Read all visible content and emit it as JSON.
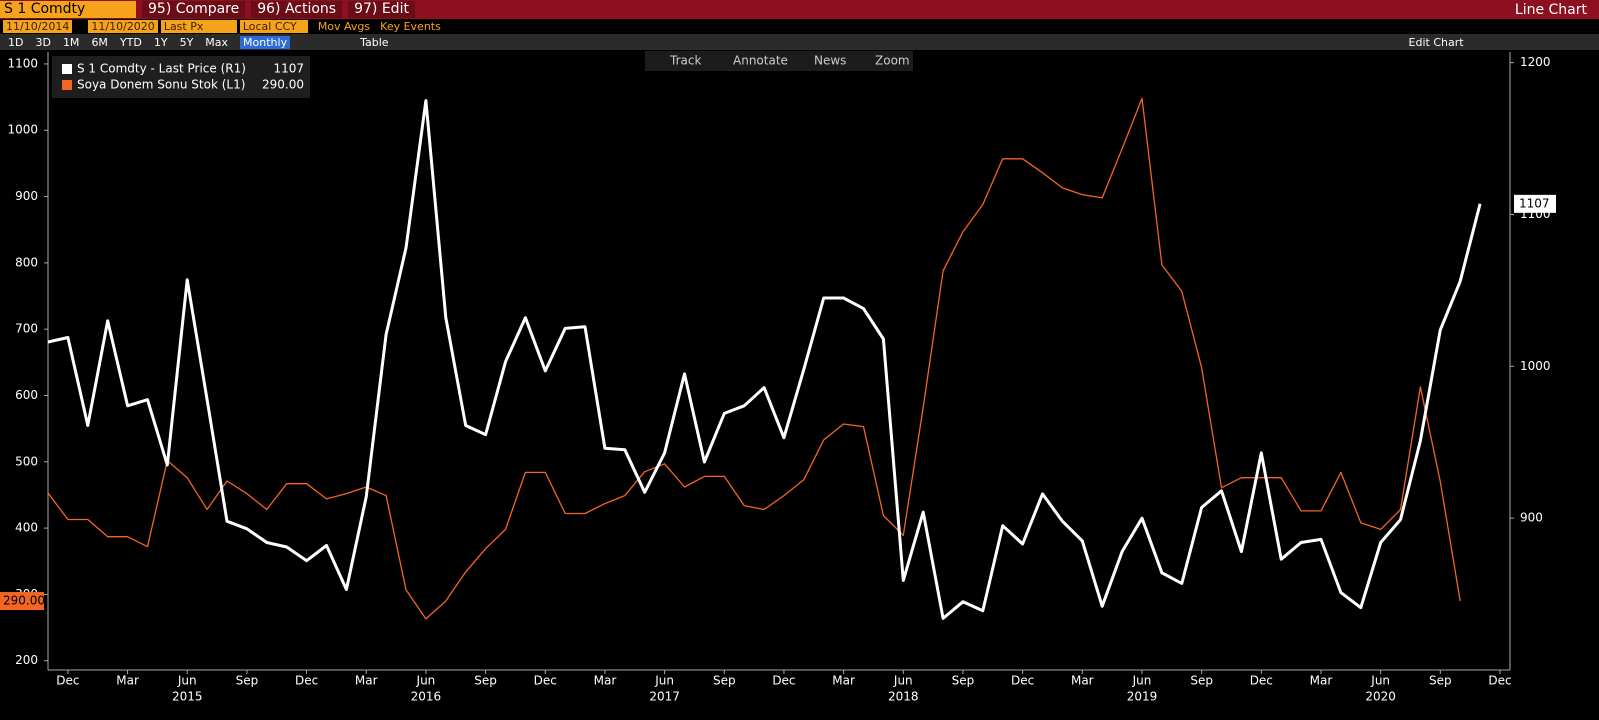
{
  "toolbar": {
    "ticker": "S 1 Comdty",
    "compare": "95) Compare",
    "actions": "96) Actions",
    "edit": "97) Edit",
    "view": "Line Chart",
    "start_date": "11/10/2014",
    "end_date": "11/10/2020",
    "field": "Last Px",
    "currency": "Local CCY",
    "mov_avgs": "Mov Avgs",
    "key_events": "Key Events",
    "periods": [
      "1D",
      "3D",
      "1M",
      "6M",
      "YTD",
      "1Y",
      "5Y",
      "Max"
    ],
    "frequency": "Monthly",
    "table": "Table",
    "edit_chart": "Edit Chart",
    "tools": [
      "Track",
      "Annotate",
      "News",
      "Zoom"
    ]
  },
  "chart_data": {
    "type": "line",
    "x": [
      "2014-11",
      "2014-12",
      "2015-01",
      "2015-02",
      "2015-03",
      "2015-04",
      "2015-05",
      "2015-06",
      "2015-07",
      "2015-08",
      "2015-09",
      "2015-10",
      "2015-11",
      "2015-12",
      "2016-01",
      "2016-02",
      "2016-03",
      "2016-04",
      "2016-05",
      "2016-06",
      "2016-07",
      "2016-08",
      "2016-09",
      "2016-10",
      "2016-11",
      "2016-12",
      "2017-01",
      "2017-02",
      "2017-03",
      "2017-04",
      "2017-05",
      "2017-06",
      "2017-07",
      "2017-08",
      "2017-09",
      "2017-10",
      "2017-11",
      "2017-12",
      "2018-01",
      "2018-02",
      "2018-03",
      "2018-04",
      "2018-05",
      "2018-06",
      "2018-07",
      "2018-08",
      "2018-09",
      "2018-10",
      "2018-11",
      "2018-12",
      "2019-01",
      "2019-02",
      "2019-03",
      "2019-04",
      "2019-05",
      "2019-06",
      "2019-07",
      "2019-08",
      "2019-09",
      "2019-10",
      "2019-11",
      "2019-12",
      "2020-01",
      "2020-02",
      "2020-03",
      "2020-04",
      "2020-05",
      "2020-06",
      "2020-07",
      "2020-08",
      "2020-09",
      "2020-10",
      "2020-11"
    ],
    "series": [
      {
        "name": "S 1 Comdty - Last Price (R1)",
        "color": "#ffffff",
        "axis": "y2",
        "last_label": "1107",
        "values": [
          1016,
          1019,
          961,
          1030,
          974,
          978,
          935,
          1057,
          978,
          898,
          893,
          884,
          881,
          872,
          882,
          853,
          914,
          1021,
          1078,
          1175,
          1032,
          961,
          955,
          1003,
          1032,
          997,
          1025,
          1026,
          946,
          945,
          917,
          943,
          995,
          937,
          969,
          974,
          986,
          953,
          998,
          1045,
          1045,
          1038,
          1018,
          859,
          904,
          834,
          845,
          839,
          895,
          883,
          916,
          898,
          885,
          842,
          878,
          900,
          864,
          857,
          907,
          918,
          878,
          943,
          873,
          884,
          886,
          851,
          841,
          884,
          899,
          951,
          1024,
          1056,
          1107
        ]
      },
      {
        "name": "Soya Donem Sonu Stok (L1)",
        "color": "#f26522",
        "axis": "y",
        "last_label": "290.00",
        "values": [
          453,
          413,
          413,
          387,
          387,
          372,
          502,
          476,
          428,
          471,
          452,
          428,
          467,
          467,
          444,
          452,
          462,
          449,
          307,
          263,
          290,
          334,
          369,
          398,
          484,
          484,
          422,
          422,
          437,
          449,
          485,
          497,
          462,
          478,
          478,
          434,
          428,
          449,
          473,
          533,
          557,
          553,
          419,
          389,
          582,
          788,
          847,
          888,
          957,
          957,
          936,
          913,
          903,
          898,
          972,
          1048,
          797,
          757,
          642,
          461,
          476,
          476,
          476,
          426,
          426,
          484,
          408,
          398,
          428,
          613,
          470,
          290,
          null
        ]
      }
    ],
    "xlim": [
      "2014-11",
      "2020-12"
    ],
    "xticks": [
      {
        "value": "2014-12",
        "label": "Dec"
      },
      {
        "value": "2015-03",
        "label": "Mar"
      },
      {
        "value": "2015-06",
        "label": "Jun"
      },
      {
        "value": "2015-09",
        "label": "Sep"
      },
      {
        "value": "2015-12",
        "label": "Dec"
      },
      {
        "value": "2016-03",
        "label": "Mar"
      },
      {
        "value": "2016-06",
        "label": "Jun"
      },
      {
        "value": "2016-09",
        "label": "Sep"
      },
      {
        "value": "2016-12",
        "label": "Dec"
      },
      {
        "value": "2017-03",
        "label": "Mar"
      },
      {
        "value": "2017-06",
        "label": "Jun"
      },
      {
        "value": "2017-09",
        "label": "Sep"
      },
      {
        "value": "2017-12",
        "label": "Dec"
      },
      {
        "value": "2018-03",
        "label": "Mar"
      },
      {
        "value": "2018-06",
        "label": "Jun"
      },
      {
        "value": "2018-09",
        "label": "Sep"
      },
      {
        "value": "2018-12",
        "label": "Dec"
      },
      {
        "value": "2019-03",
        "label": "Mar"
      },
      {
        "value": "2019-06",
        "label": "Jun"
      },
      {
        "value": "2019-09",
        "label": "Sep"
      },
      {
        "value": "2019-12",
        "label": "Dec"
      },
      {
        "value": "2020-03",
        "label": "Mar"
      },
      {
        "value": "2020-06",
        "label": "Jun"
      },
      {
        "value": "2020-09",
        "label": "Sep"
      },
      {
        "value": "2020-12",
        "label": "Dec"
      }
    ],
    "xticks_years": [
      {
        "value": "2015-06",
        "label": "2015"
      },
      {
        "value": "2016-06",
        "label": "2016"
      },
      {
        "value": "2017-06",
        "label": "2017"
      },
      {
        "value": "2018-06",
        "label": "2018"
      },
      {
        "value": "2019-06",
        "label": "2019"
      },
      {
        "value": "2020-06",
        "label": "2020"
      }
    ],
    "ylim": [
      186,
      1118
    ],
    "yticks": [
      200,
      300,
      400,
      500,
      600,
      700,
      800,
      900,
      1000,
      1100
    ],
    "y2lim": [
      800,
      1207
    ],
    "y2ticks": [
      900,
      1000,
      1100,
      1200
    ],
    "grid": false
  }
}
